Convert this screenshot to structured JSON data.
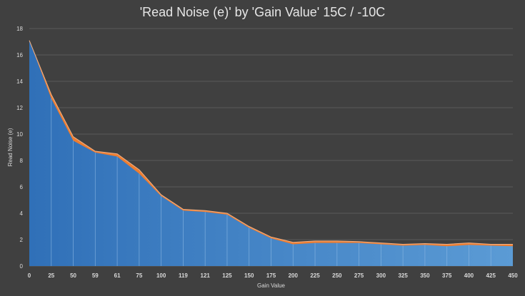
{
  "chart_data": {
    "type": "area",
    "title": "'Read Noise (e)' by 'Gain Value' 15C / -10C",
    "xlabel": "Gain Value",
    "ylabel": "Read Noise (e)",
    "ylim": [
      0,
      18
    ],
    "yticks": [
      0,
      2,
      4,
      6,
      8,
      10,
      12,
      14,
      16,
      18
    ],
    "grid": true,
    "categories": [
      "0",
      "25",
      "50",
      "59",
      "61",
      "75",
      "100",
      "119",
      "121",
      "125",
      "150",
      "175",
      "200",
      "225",
      "250",
      "275",
      "300",
      "325",
      "350",
      "375",
      "400",
      "425",
      "450"
    ],
    "series": [
      {
        "values": [
          17.1,
          13.0,
          9.8,
          8.7,
          8.5,
          7.3,
          5.4,
          4.3,
          4.2,
          4.0,
          3.0,
          2.2,
          1.8,
          1.9,
          1.9,
          1.85,
          1.75,
          1.65,
          1.7,
          1.65,
          1.75,
          1.65,
          1.65
        ],
        "color": "#ed7d31"
      },
      {
        "values": [
          17.1,
          12.7,
          9.5,
          8.6,
          8.3,
          7.0,
          5.3,
          4.2,
          4.1,
          3.9,
          2.9,
          2.1,
          1.65,
          1.75,
          1.75,
          1.75,
          1.65,
          1.55,
          1.6,
          1.5,
          1.6,
          1.55,
          1.5
        ],
        "color": "#5b9bd5"
      }
    ]
  }
}
